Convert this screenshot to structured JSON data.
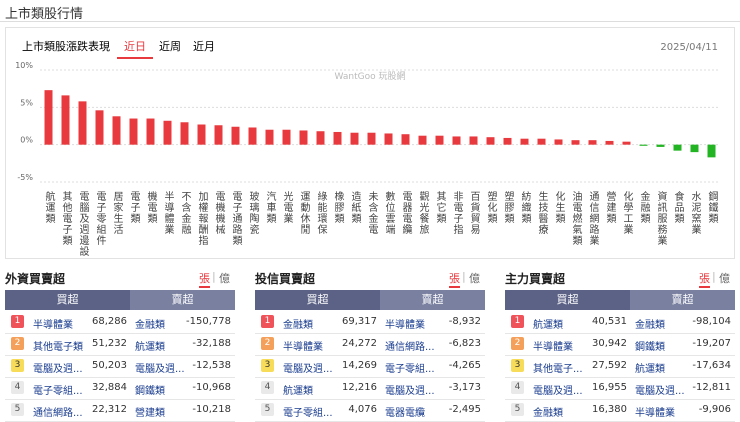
{
  "header": {
    "title": "上市類股行情"
  },
  "chart_panel": {
    "title": "上市類股漲跌表現",
    "tabs": [
      "近日",
      "近周",
      "近月"
    ],
    "date": "2025/04/11",
    "watermark": "WantGoo 玩股網"
  },
  "chart_data": {
    "type": "bar",
    "categories": [
      "航運類",
      "其他電子類",
      "電腦及週邊設",
      "電子零組件",
      "居家生活",
      "電子類",
      "機電類",
      "半導體業",
      "不含金融",
      "加權報酬指",
      "電機機械",
      "電子通路類",
      "玻璃陶瓷",
      "汽車類",
      "光電業",
      "運動休閒",
      "綠能環保",
      "橡膠類",
      "造紙類",
      "未含金電",
      "數位雲端",
      "電器電纜",
      "觀光餐旅",
      "其它類",
      "非電子指",
      "百貨貿易",
      "塑化類",
      "塑膠類",
      "紡織類",
      "生技醫療",
      "化生類",
      "油電燃氣類",
      "通信網路業",
      "營建類",
      "化學工業",
      "金融類",
      "資訊服務業",
      "食品類",
      "水泥窯業",
      "鋼鐵類"
    ],
    "values": [
      7.3,
      6.6,
      5.8,
      4.6,
      3.8,
      3.5,
      3.5,
      3.2,
      3.0,
      2.7,
      2.6,
      2.4,
      2.3,
      2.0,
      2.0,
      1.9,
      1.8,
      1.7,
      1.6,
      1.6,
      1.5,
      1.4,
      1.2,
      1.2,
      1.1,
      1.1,
      1.0,
      0.9,
      0.8,
      0.8,
      0.7,
      0.6,
      0.6,
      0.5,
      0.4,
      -0.15,
      -0.3,
      -0.8,
      -1.0,
      -1.7
    ],
    "up_color": "#e8393e",
    "down_color": "#22b422",
    "ylim": [
      -5,
      10
    ],
    "yticks": [
      {
        "value": -5,
        "label": "-5%"
      },
      {
        "value": 0,
        "label": "0%"
      },
      {
        "value": 5,
        "label": "5%"
      },
      {
        "value": 10,
        "label": "10%"
      }
    ],
    "grid": true
  },
  "tables": [
    {
      "title": "外資買賣超",
      "units": [
        "張",
        "億"
      ],
      "headers": [
        "買超",
        "賣超"
      ],
      "rows": [
        [
          1,
          "半導體業",
          "68,286",
          "金融類",
          "-150,778"
        ],
        [
          2,
          "其他電子類",
          "51,232",
          "航運類",
          "-32,188"
        ],
        [
          3,
          "電腦及週...",
          "50,203",
          "電腦及週...",
          "-12,538"
        ],
        [
          4,
          "電子零組...",
          "32,884",
          "鋼鐵類",
          "-10,968"
        ],
        [
          5,
          "通信網路...",
          "22,312",
          "營建類",
          "-10,218"
        ]
      ]
    },
    {
      "title": "投信買賣超",
      "units": [
        "張",
        "億"
      ],
      "headers": [
        "買超",
        "賣超"
      ],
      "rows": [
        [
          1,
          "金融類",
          "69,317",
          "半導體業",
          "-8,932"
        ],
        [
          2,
          "半導體業",
          "24,272",
          "通信網路...",
          "-6,823"
        ],
        [
          3,
          "電腦及週...",
          "14,269",
          "電子零組...",
          "-4,265"
        ],
        [
          4,
          "航運類",
          "12,216",
          "電腦及週...",
          "-3,173"
        ],
        [
          5,
          "電子零組...",
          "4,076",
          "電器電纜",
          "-2,495"
        ]
      ]
    },
    {
      "title": "主力買賣超",
      "units": [
        "張",
        "億"
      ],
      "headers": [
        "買超",
        "賣超"
      ],
      "rows": [
        [
          1,
          "航運類",
          "40,531",
          "金融類",
          "-98,104"
        ],
        [
          2,
          "半導體業",
          "30,942",
          "鋼鐵類",
          "-19,207"
        ],
        [
          3,
          "其他電子...",
          "27,592",
          "航運類",
          "-17,634"
        ],
        [
          4,
          "電腦及週...",
          "16,955",
          "電腦及週...",
          "-12,811"
        ],
        [
          5,
          "金融類",
          "16,380",
          "半導體業",
          "-9,906"
        ]
      ]
    }
  ]
}
